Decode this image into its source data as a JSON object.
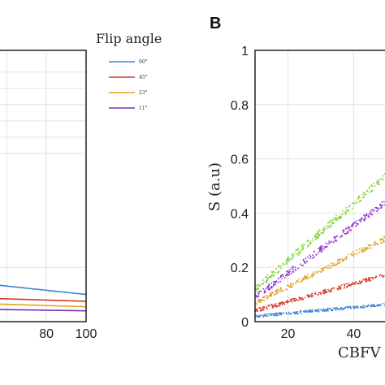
{
  "chart_data": [
    {
      "panel": "",
      "type": "line",
      "x_ticks": [
        "80",
        "100"
      ],
      "xlim": [
        55,
        100
      ],
      "ylim": [
        0,
        1
      ],
      "grid": true,
      "series": [
        {
          "name": "90°",
          "color": "#3a86d4",
          "x": [
            55,
            100
          ],
          "y": [
            0.135,
            0.1
          ]
        },
        {
          "name": "45°",
          "color": "#d63a2a",
          "x": [
            55,
            100
          ],
          "y": [
            0.085,
            0.075
          ]
        },
        {
          "name": "23°",
          "color": "#e5a119",
          "x": [
            55,
            100
          ],
          "y": [
            0.065,
            0.055
          ]
        },
        {
          "name": "11°",
          "color": "#7a2ec4",
          "x": [
            55,
            100
          ],
          "y": [
            0.045,
            0.04
          ]
        }
      ]
    },
    {
      "panel": "B",
      "type": "scatter",
      "xlabel": "CBFV",
      "ylabel": "S (a.u)",
      "x_ticks": [
        "20",
        "40"
      ],
      "y_ticks": [
        "0",
        "0.2",
        "0.4",
        "0.6",
        "0.8",
        "1"
      ],
      "xlim": [
        10,
        52
      ],
      "ylim": [
        0,
        1
      ],
      "grid": true,
      "series": [
        {
          "color": "#7bd12f",
          "x": [
            10,
            52
          ],
          "y": [
            0.12,
            0.56
          ]
        },
        {
          "color": "#8a2ed1",
          "x": [
            10,
            52
          ],
          "y": [
            0.09,
            0.46
          ]
        },
        {
          "color": "#e5a119",
          "x": [
            10,
            52
          ],
          "y": [
            0.07,
            0.32
          ]
        },
        {
          "color": "#d63a2a",
          "x": [
            10,
            52
          ],
          "y": [
            0.04,
            0.18
          ]
        },
        {
          "color": "#3a86d4",
          "x": [
            10,
            52
          ],
          "y": [
            0.02,
            0.065
          ]
        }
      ]
    }
  ],
  "legend": {
    "title": "Flip angle",
    "entries": [
      {
        "label": "90°",
        "color": "#3a86d4"
      },
      {
        "label": "45°",
        "color": "#d63a2a"
      },
      {
        "label": "23°",
        "color": "#e5a119"
      },
      {
        "label": "11°",
        "color": "#7a2ec4"
      }
    ]
  }
}
